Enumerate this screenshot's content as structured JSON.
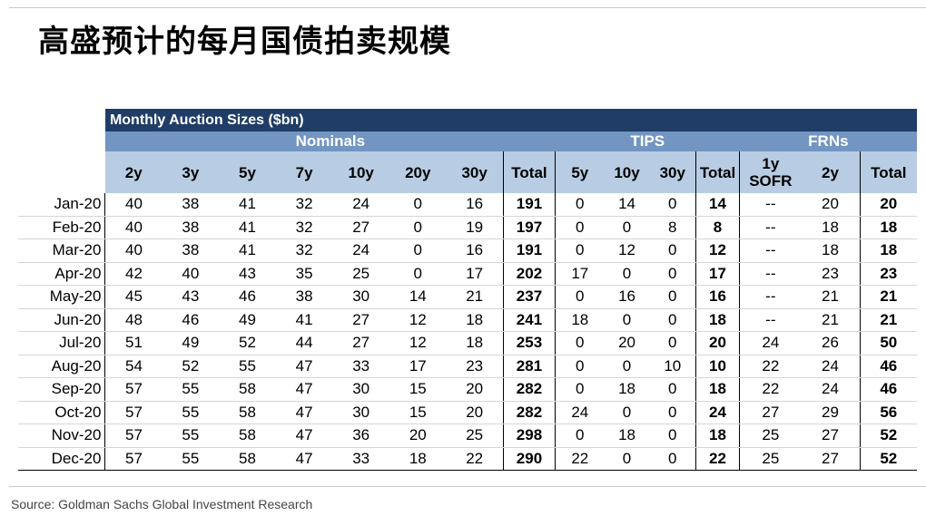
{
  "page_title": "高盛预计的每月国债拍卖规模",
  "source": "Source: Goldman Sachs Global Investment Research",
  "chart_data": {
    "type": "table",
    "title": "Monthly Auction Sizes ($bn)",
    "groups": [
      {
        "label": "Nominals",
        "span": 8
      },
      {
        "label": "TIPS",
        "span": 4
      },
      {
        "label": "FRNs",
        "span": 3
      }
    ],
    "columns": [
      "2y",
      "3y",
      "5y",
      "7y",
      "10y",
      "20y",
      "30y",
      "Total",
      "5y",
      "10y",
      "30y",
      "Total",
      "1y SOFR",
      "2y",
      "Total"
    ],
    "rows": [
      {
        "month": "Jan-20",
        "values": [
          "40",
          "38",
          "41",
          "32",
          "24",
          "0",
          "16",
          "191",
          "0",
          "14",
          "0",
          "14",
          "--",
          "20",
          "20"
        ]
      },
      {
        "month": "Feb-20",
        "values": [
          "40",
          "38",
          "41",
          "32",
          "27",
          "0",
          "19",
          "197",
          "0",
          "0",
          "8",
          "8",
          "--",
          "18",
          "18"
        ]
      },
      {
        "month": "Mar-20",
        "values": [
          "40",
          "38",
          "41",
          "32",
          "24",
          "0",
          "16",
          "191",
          "0",
          "12",
          "0",
          "12",
          "--",
          "18",
          "18"
        ]
      },
      {
        "month": "Apr-20",
        "values": [
          "42",
          "40",
          "43",
          "35",
          "25",
          "0",
          "17",
          "202",
          "17",
          "0",
          "0",
          "17",
          "--",
          "23",
          "23"
        ]
      },
      {
        "month": "May-20",
        "values": [
          "45",
          "43",
          "46",
          "38",
          "30",
          "14",
          "21",
          "237",
          "0",
          "16",
          "0",
          "16",
          "--",
          "21",
          "21"
        ]
      },
      {
        "month": "Jun-20",
        "values": [
          "48",
          "46",
          "49",
          "41",
          "27",
          "12",
          "18",
          "241",
          "18",
          "0",
          "0",
          "18",
          "--",
          "21",
          "21"
        ]
      },
      {
        "month": "Jul-20",
        "values": [
          "51",
          "49",
          "52",
          "44",
          "27",
          "12",
          "18",
          "253",
          "0",
          "20",
          "0",
          "20",
          "24",
          "26",
          "50"
        ]
      },
      {
        "month": "Aug-20",
        "values": [
          "54",
          "52",
          "55",
          "47",
          "33",
          "17",
          "23",
          "281",
          "0",
          "0",
          "10",
          "10",
          "22",
          "24",
          "46"
        ]
      },
      {
        "month": "Sep-20",
        "values": [
          "57",
          "55",
          "58",
          "47",
          "30",
          "15",
          "20",
          "282",
          "0",
          "18",
          "0",
          "18",
          "22",
          "24",
          "46"
        ]
      },
      {
        "month": "Oct-20",
        "values": [
          "57",
          "55",
          "58",
          "47",
          "30",
          "15",
          "20",
          "282",
          "24",
          "0",
          "0",
          "24",
          "27",
          "29",
          "56"
        ]
      },
      {
        "month": "Nov-20",
        "values": [
          "57",
          "55",
          "58",
          "47",
          "36",
          "20",
          "25",
          "298",
          "0",
          "18",
          "0",
          "18",
          "25",
          "27",
          "52"
        ]
      },
      {
        "month": "Dec-20",
        "values": [
          "57",
          "55",
          "58",
          "47",
          "33",
          "18",
          "22",
          "290",
          "22",
          "0",
          "0",
          "22",
          "25",
          "27",
          "52"
        ]
      }
    ]
  }
}
